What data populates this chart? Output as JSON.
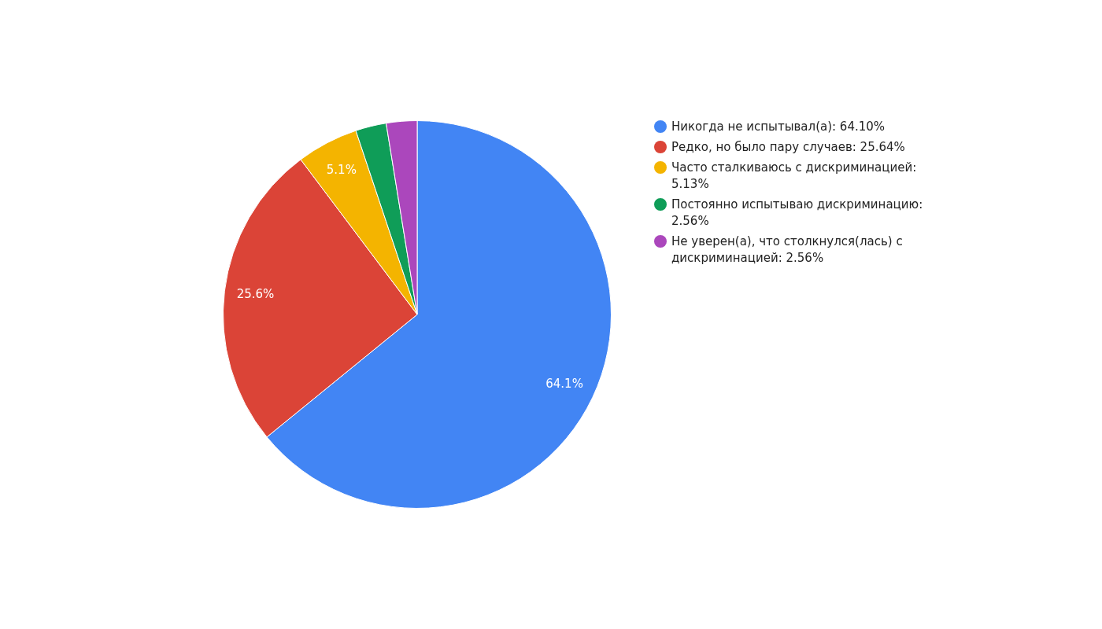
{
  "chart_data": {
    "type": "pie",
    "categories": [
      "Никогда не испытывал(а): 64.10%",
      "Редко, но было пару случаев: 25.64%",
      "Часто сталкиваюсь с дискриминацией: 5.13%",
      "Постоянно испытываю дискриминацию: 2.56%",
      "Не уверен(а), что столкнулся(лась) с дискриминацией: 2.56%"
    ],
    "values": [
      64.1,
      25.64,
      5.13,
      2.56,
      2.56
    ],
    "colors": [
      "#4285f4",
      "#db4437",
      "#f4b400",
      "#0f9d58",
      "#ab47bc"
    ],
    "value_labels": [
      "64.1%",
      "25.6%",
      "5.1%",
      null,
      null
    ],
    "legend": "right"
  }
}
